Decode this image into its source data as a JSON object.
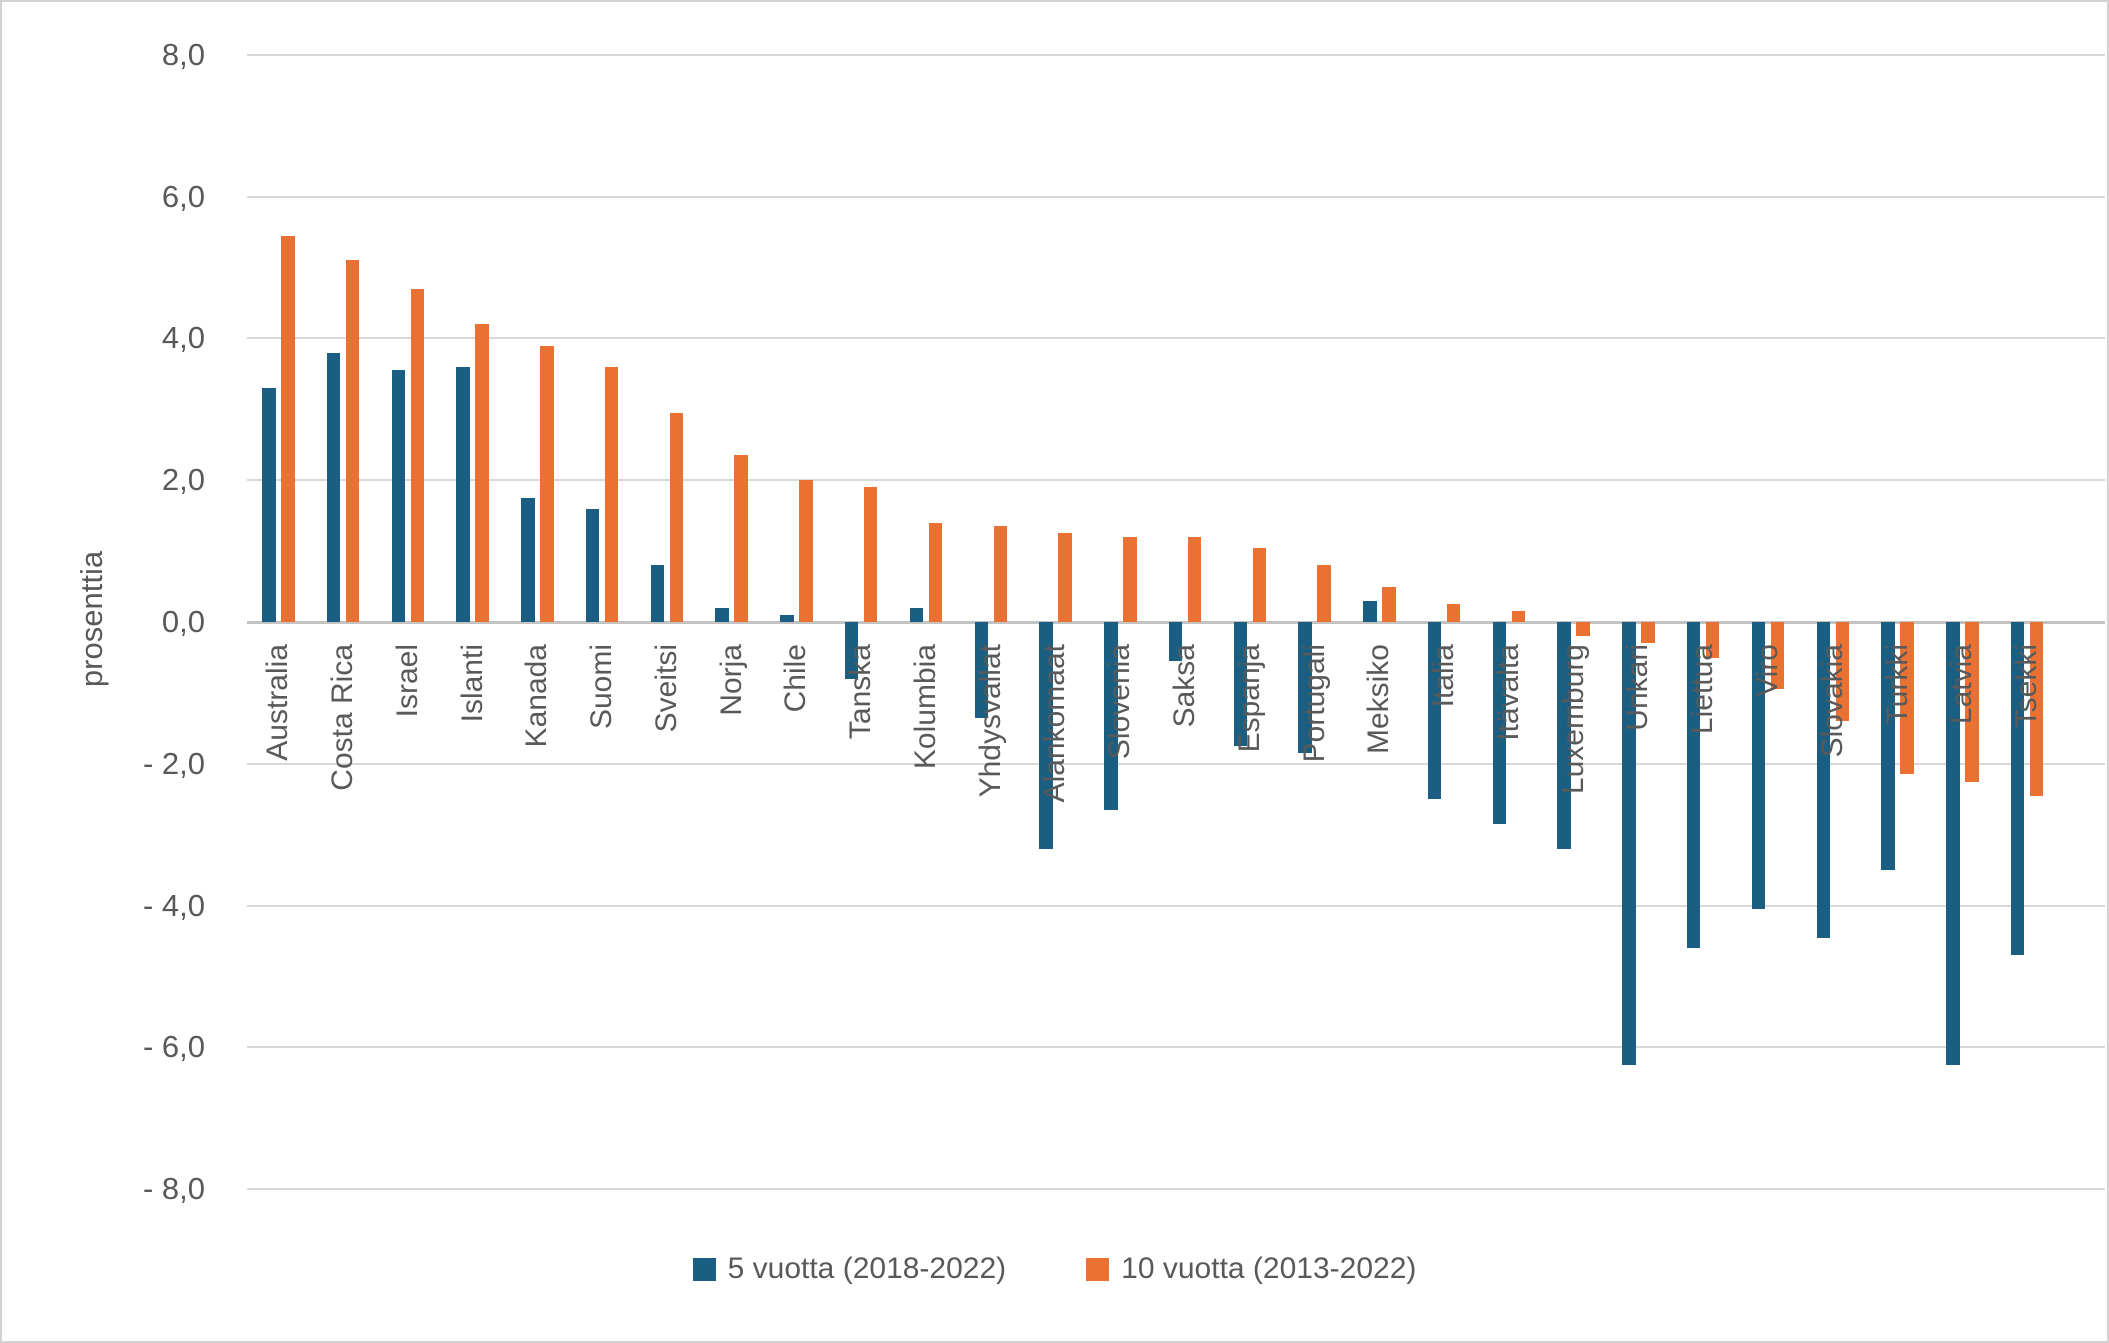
{
  "chart_data": {
    "type": "bar",
    "title": "",
    "ylabel": "prosenttia",
    "xlabel": "",
    "ylim": [
      -8,
      8
    ],
    "grid": true,
    "legend_position": "bottom",
    "yticks": [
      {
        "value": 8,
        "label": "8,0"
      },
      {
        "value": 6,
        "label": "6,0"
      },
      {
        "value": 4,
        "label": "4,0"
      },
      {
        "value": 2,
        "label": "2,0"
      },
      {
        "value": 0,
        "label": "0,0"
      },
      {
        "value": -2,
        "label": "- 2,0"
      },
      {
        "value": -4,
        "label": "- 4,0"
      },
      {
        "value": -6,
        "label": "- 6,0"
      },
      {
        "value": -8,
        "label": "- 8,0"
      }
    ],
    "categories": [
      "Australia",
      "Costa Rica",
      "Israel",
      "Islanti",
      "Kanada",
      "Suomi",
      "Sveitsi",
      "Norja",
      "Chile",
      "Tanska",
      "Kolumbia",
      "Yhdysvallat",
      "Alankomaat",
      "Slovenia",
      "Saksa",
      "Espanja",
      "Portugali",
      "Meksiko",
      "Italia",
      "Itävalta",
      "Luxemburg",
      "Unkari",
      "Liettua",
      "Viro",
      "Slovakia",
      "Turkki",
      "Latvia",
      "Tsekki"
    ],
    "series": [
      {
        "name": "5 vuotta (2018-2022)",
        "color": "#1A5F82",
        "values": [
          3.3,
          3.8,
          3.55,
          3.6,
          1.75,
          1.6,
          0.8,
          0.2,
          0.1,
          -0.8,
          0.2,
          -1.35,
          -3.2,
          -2.65,
          -0.55,
          -1.75,
          -1.85,
          0.3,
          -2.5,
          -2.85,
          -3.2,
          -6.25,
          -4.6,
          -4.05,
          -4.45,
          -3.5,
          -6.25,
          -4.7
        ]
      },
      {
        "name": "10 vuotta (2013-2022)",
        "color": "#E97132",
        "values": [
          5.45,
          5.1,
          4.7,
          4.2,
          3.9,
          3.6,
          2.95,
          2.35,
          2.0,
          1.9,
          1.4,
          1.35,
          1.25,
          1.2,
          1.2,
          1.05,
          0.8,
          0.5,
          0.25,
          0.15,
          -0.2,
          -0.3,
          -0.5,
          -0.95,
          -1.4,
          -2.15,
          -2.25,
          -2.45
        ]
      }
    ]
  },
  "colors": {
    "grid": "#D9D9D9",
    "zero_line": "#C3C3C3",
    "text": "#595959",
    "background": "#FFFFFF",
    "border": "#D2D2D2"
  }
}
